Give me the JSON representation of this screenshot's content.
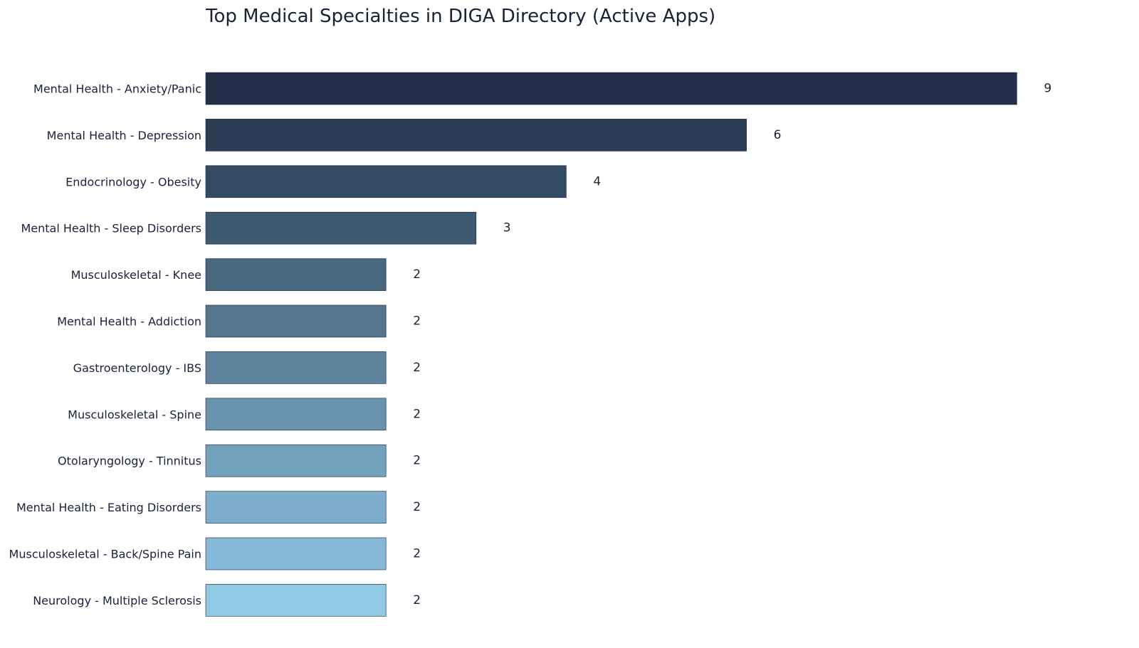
{
  "chart_data": {
    "type": "bar",
    "orientation": "horizontal",
    "title": "Top Medical Specialties in DIGA Directory (Active Apps)",
    "xlabel": "",
    "ylabel": "",
    "xlim": [
      0,
      9
    ],
    "grid": false,
    "legend": "none",
    "categories": [
      "Mental Health - Anxiety/Panic",
      "Mental Health - Depression",
      "Endocrinology - Obesity",
      "Mental Health - Sleep Disorders",
      "Musculoskeletal - Knee",
      "Mental Health - Addiction",
      "Gastroenterology - IBS",
      "Musculoskeletal - Spine",
      "Otolaryngology - Tinnitus",
      "Mental Health - Eating Disorders",
      "Musculoskeletal - Back/Spine Pain",
      "Neurology - Multiple Sclerosis"
    ],
    "values": [
      9,
      6,
      4,
      3,
      2,
      2,
      2,
      2,
      2,
      2,
      2,
      2
    ],
    "colors": [
      "#232f48",
      "#2c3d56",
      "#354b63",
      "#3e5a71",
      "#48687f",
      "#53768e",
      "#5e859d",
      "#6893ac",
      "#72a2bc",
      "#7caecb",
      "#86bad8",
      "#8fc9e4"
    ]
  }
}
